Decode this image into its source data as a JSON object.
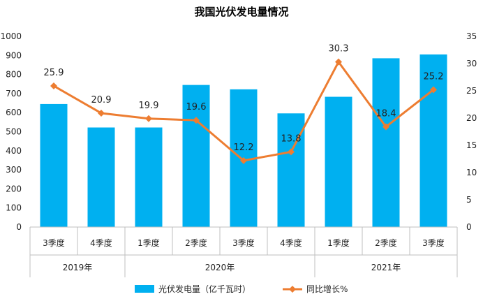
{
  "chart_data": {
    "type": "bar",
    "title": "我国光伏发电量情况",
    "categories": [
      "3季度",
      "4季度",
      "1季度",
      "2季度",
      "3季度",
      "4季度",
      "1季度",
      "2季度",
      "3季度"
    ],
    "groups": [
      {
        "label": "2019年",
        "span": 2
      },
      {
        "label": "2020年",
        "span": 4
      },
      {
        "label": "2021年",
        "span": 3
      }
    ],
    "series": [
      {
        "name": "光伏发电量（亿千瓦时）",
        "type": "bar",
        "axis": "left",
        "color": "#00B0F0",
        "values": [
          645,
          522,
          522,
          745,
          722,
          596,
          683,
          885,
          905
        ]
      },
      {
        "name": "同比增长%",
        "type": "line",
        "axis": "right",
        "color": "#ED7D31",
        "values": [
          25.9,
          20.9,
          19.9,
          19.6,
          12.2,
          13.8,
          30.3,
          18.4,
          25.2
        ],
        "labels": [
          "25.9",
          "20.9",
          "19.9",
          "19.6",
          "12.2",
          "13.8",
          "30.3",
          "18.4",
          "25.2"
        ]
      }
    ],
    "y_left": {
      "min": 0,
      "max": 1000,
      "ticks": [
        "0",
        "100",
        "200",
        "300",
        "400",
        "500",
        "600",
        "700",
        "800",
        "900",
        "1000"
      ]
    },
    "y_right": {
      "min": 0,
      "max": 35,
      "ticks": [
        "0",
        "5",
        "10",
        "15",
        "20",
        "25",
        "30",
        "35"
      ]
    },
    "grid": false,
    "legend_position": "bottom"
  }
}
